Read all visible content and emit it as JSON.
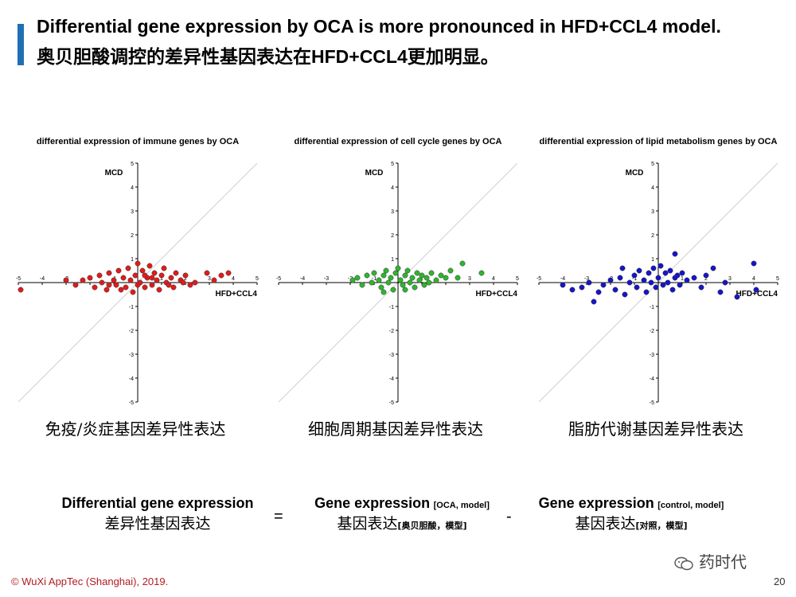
{
  "header": {
    "title_en": "Differential gene expression by OCA is more pronounced in HFD+CCL4 model.",
    "title_zh": "奥贝胆酸调控的差异性基因表达在HFD+CCL4更加明显。",
    "accent_color": "#1f6fb5"
  },
  "chart_data": [
    {
      "type": "scatter",
      "title": "differential expression of immune genes by OCA",
      "xlabel": "HFD+CCL4",
      "ylabel": "MCD",
      "xlim": [
        -5,
        5
      ],
      "ylim": [
        -5,
        5
      ],
      "x_ticks": [
        -5,
        -4,
        -3,
        -2,
        -1,
        1,
        2,
        3,
        4,
        5
      ],
      "y_ticks": [
        -5,
        -4,
        -3,
        -2,
        -1,
        1,
        2,
        3,
        4,
        5
      ],
      "diagonal": "y = x",
      "color": "#e01b1b",
      "caption": "免疫/炎症基因差异性表达",
      "points": [
        [
          -4.9,
          -0.3
        ],
        [
          -3.0,
          0.1
        ],
        [
          -2.6,
          -0.1
        ],
        [
          -2.3,
          0.1
        ],
        [
          -2.0,
          0.2
        ],
        [
          -1.8,
          -0.2
        ],
        [
          -1.6,
          0.3
        ],
        [
          -1.5,
          0.0
        ],
        [
          -1.3,
          -0.3
        ],
        [
          -1.2,
          0.4
        ],
        [
          -1.0,
          0.1
        ],
        [
          -0.9,
          -0.1
        ],
        [
          -0.8,
          0.5
        ],
        [
          -0.6,
          0.2
        ],
        [
          -0.5,
          -0.2
        ],
        [
          -0.4,
          0.6
        ],
        [
          -0.3,
          0.1
        ],
        [
          -0.2,
          -0.4
        ],
        [
          -0.1,
          0.3
        ],
        [
          0.0,
          0.8
        ],
        [
          0.1,
          0.0
        ],
        [
          0.2,
          0.5
        ],
        [
          0.3,
          -0.2
        ],
        [
          0.4,
          0.2
        ],
        [
          0.5,
          0.7
        ],
        [
          0.6,
          -0.1
        ],
        [
          0.7,
          0.4
        ],
        [
          0.8,
          0.1
        ],
        [
          0.9,
          -0.3
        ],
        [
          1.0,
          0.3
        ],
        [
          1.1,
          0.6
        ],
        [
          1.2,
          0.0
        ],
        [
          1.4,
          0.2
        ],
        [
          1.5,
          -0.2
        ],
        [
          1.6,
          0.4
        ],
        [
          1.8,
          0.1
        ],
        [
          2.0,
          0.3
        ],
        [
          2.2,
          -0.1
        ],
        [
          2.4,
          0.0
        ],
        [
          2.9,
          0.4
        ],
        [
          3.2,
          0.1
        ],
        [
          3.5,
          0.3
        ],
        [
          3.8,
          0.4
        ],
        [
          -1.2,
          -0.1
        ],
        [
          -0.7,
          -0.3
        ],
        [
          0.0,
          -0.1
        ],
        [
          0.3,
          0.3
        ],
        [
          0.6,
          0.2
        ],
        [
          1.3,
          -0.1
        ],
        [
          1.9,
          0.0
        ]
      ]
    },
    {
      "type": "scatter",
      "title": "differential expression of cell cycle genes by OCA",
      "xlabel": "HFD+CCL4",
      "ylabel": "MCD",
      "xlim": [
        -5,
        5
      ],
      "ylim": [
        -5,
        5
      ],
      "x_ticks": [
        -5,
        -4,
        -3,
        -2,
        -1,
        1,
        2,
        3,
        4,
        5
      ],
      "y_ticks": [
        -5,
        -4,
        -3,
        -2,
        -1,
        1,
        2,
        3,
        4,
        5
      ],
      "diagonal": "y = x",
      "color": "#2fb52f",
      "caption": "细胞周期基因差异性表达",
      "points": [
        [
          -1.9,
          0.1
        ],
        [
          -1.7,
          0.2
        ],
        [
          -1.5,
          -0.1
        ],
        [
          -1.3,
          0.3
        ],
        [
          -1.1,
          0.0
        ],
        [
          -1.0,
          0.4
        ],
        [
          -0.8,
          0.1
        ],
        [
          -0.7,
          -0.2
        ],
        [
          -0.6,
          0.3
        ],
        [
          -0.5,
          0.5
        ],
        [
          -0.4,
          0.0
        ],
        [
          -0.3,
          0.2
        ],
        [
          -0.2,
          -0.3
        ],
        [
          -0.1,
          0.4
        ],
        [
          0.0,
          0.6
        ],
        [
          0.1,
          0.1
        ],
        [
          0.2,
          -0.1
        ],
        [
          0.3,
          0.3
        ],
        [
          0.4,
          0.5
        ],
        [
          0.5,
          0.0
        ],
        [
          0.6,
          0.2
        ],
        [
          0.7,
          -0.2
        ],
        [
          0.8,
          0.4
        ],
        [
          0.9,
          0.1
        ],
        [
          1.0,
          0.3
        ],
        [
          1.1,
          -0.1
        ],
        [
          1.2,
          0.2
        ],
        [
          1.4,
          0.4
        ],
        [
          1.6,
          0.1
        ],
        [
          1.8,
          0.3
        ],
        [
          2.0,
          0.2
        ],
        [
          2.2,
          0.5
        ],
        [
          2.5,
          0.2
        ],
        [
          2.7,
          0.8
        ],
        [
          3.5,
          0.4
        ],
        [
          -0.6,
          -0.4
        ],
        [
          0.3,
          -0.3
        ],
        [
          1.3,
          0.0
        ]
      ]
    },
    {
      "type": "scatter",
      "title": "differential expression of lipid metabolism genes by OCA",
      "xlabel": "HFD+CCL4",
      "ylabel": "MCD",
      "xlim": [
        -5,
        5
      ],
      "ylim": [
        -5,
        5
      ],
      "x_ticks": [
        -5,
        -4,
        -3,
        -2,
        -1,
        1,
        2,
        3,
        4,
        5
      ],
      "y_ticks": [
        -5,
        -4,
        -3,
        -2,
        -1,
        1,
        2,
        3,
        4,
        5
      ],
      "diagonal": "y = x",
      "color": "#1515c8",
      "caption": "脂肪代谢基因差异性表达",
      "points": [
        [
          -4.0,
          -0.1
        ],
        [
          -3.6,
          -0.3
        ],
        [
          -3.2,
          -0.2
        ],
        [
          -2.9,
          0.0
        ],
        [
          -2.7,
          -0.8
        ],
        [
          -2.5,
          -0.4
        ],
        [
          -2.3,
          -0.1
        ],
        [
          -2.0,
          0.1
        ],
        [
          -1.8,
          -0.3
        ],
        [
          -1.6,
          0.2
        ],
        [
          -1.4,
          -0.5
        ],
        [
          -1.2,
          0.0
        ],
        [
          -1.0,
          0.3
        ],
        [
          -0.9,
          -0.2
        ],
        [
          -0.8,
          0.5
        ],
        [
          -0.6,
          0.1
        ],
        [
          -0.5,
          -0.4
        ],
        [
          -0.4,
          0.4
        ],
        [
          -0.3,
          0.0
        ],
        [
          -0.2,
          0.6
        ],
        [
          -0.1,
          -0.2
        ],
        [
          0.0,
          0.2
        ],
        [
          0.1,
          0.7
        ],
        [
          0.2,
          -0.1
        ],
        [
          0.3,
          0.4
        ],
        [
          0.4,
          0.0
        ],
        [
          0.5,
          0.5
        ],
        [
          0.6,
          -0.3
        ],
        [
          0.7,
          0.2
        ],
        [
          0.8,
          0.3
        ],
        [
          0.9,
          -0.1
        ],
        [
          1.0,
          0.4
        ],
        [
          1.2,
          0.1
        ],
        [
          1.5,
          0.2
        ],
        [
          1.8,
          -0.2
        ],
        [
          2.0,
          0.3
        ],
        [
          2.3,
          0.6
        ],
        [
          2.6,
          -0.4
        ],
        [
          2.8,
          0.0
        ],
        [
          3.3,
          -0.6
        ],
        [
          4.0,
          0.8
        ],
        [
          4.1,
          -0.3
        ],
        [
          0.7,
          1.2
        ],
        [
          -1.5,
          0.6
        ]
      ]
    }
  ],
  "formula": {
    "lhs_en": "Differential gene expression",
    "lhs_zh": "差异性基因表达",
    "equals": "=",
    "t1_en": "Gene expression",
    "t1_sub_en": "[OCA, model]",
    "t1_zh": "基因表达",
    "t1_sub_zh": "[奥贝胆酸，模型]",
    "minus": "-",
    "t2_en": "Gene expression",
    "t2_sub_en": "[control, model]",
    "t2_zh": "基因表达",
    "t2_sub_zh": "[对照，模型]"
  },
  "footer": {
    "copyright": "© WuXi AppTec (Shanghai), 2019.",
    "page_number": "20",
    "watermark": "药时代",
    "watermark_icon": "wechat-icon"
  }
}
